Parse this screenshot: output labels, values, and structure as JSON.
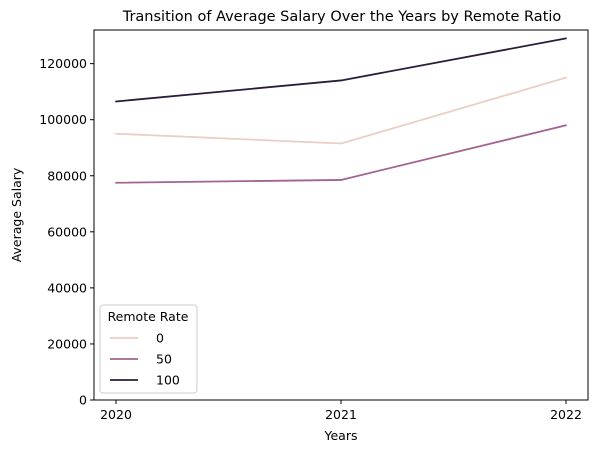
{
  "chart_data": {
    "type": "line",
    "title": "Transition of Average Salary Over the Years by Remote Ratio",
    "xlabel": "Years",
    "ylabel": "Average Salary",
    "x": [
      2020,
      2021,
      2022
    ],
    "xticks": [
      "2020",
      "2021",
      "2022"
    ],
    "yticks": [
      "0",
      "20000",
      "40000",
      "60000",
      "80000",
      "100000",
      "120000"
    ],
    "ylim": [
      0,
      132000
    ],
    "grid": false,
    "legend": {
      "title": "Remote Rate",
      "placement": "lower-left"
    },
    "series": [
      {
        "name": "0",
        "color": "#ebcec4",
        "values": [
          95000,
          91500,
          115000
        ]
      },
      {
        "name": "50",
        "color": "#a1638f",
        "values": [
          77500,
          78500,
          98000
        ]
      },
      {
        "name": "100",
        "color": "#2a1d3c",
        "values": [
          106500,
          114000,
          129000
        ]
      }
    ]
  }
}
